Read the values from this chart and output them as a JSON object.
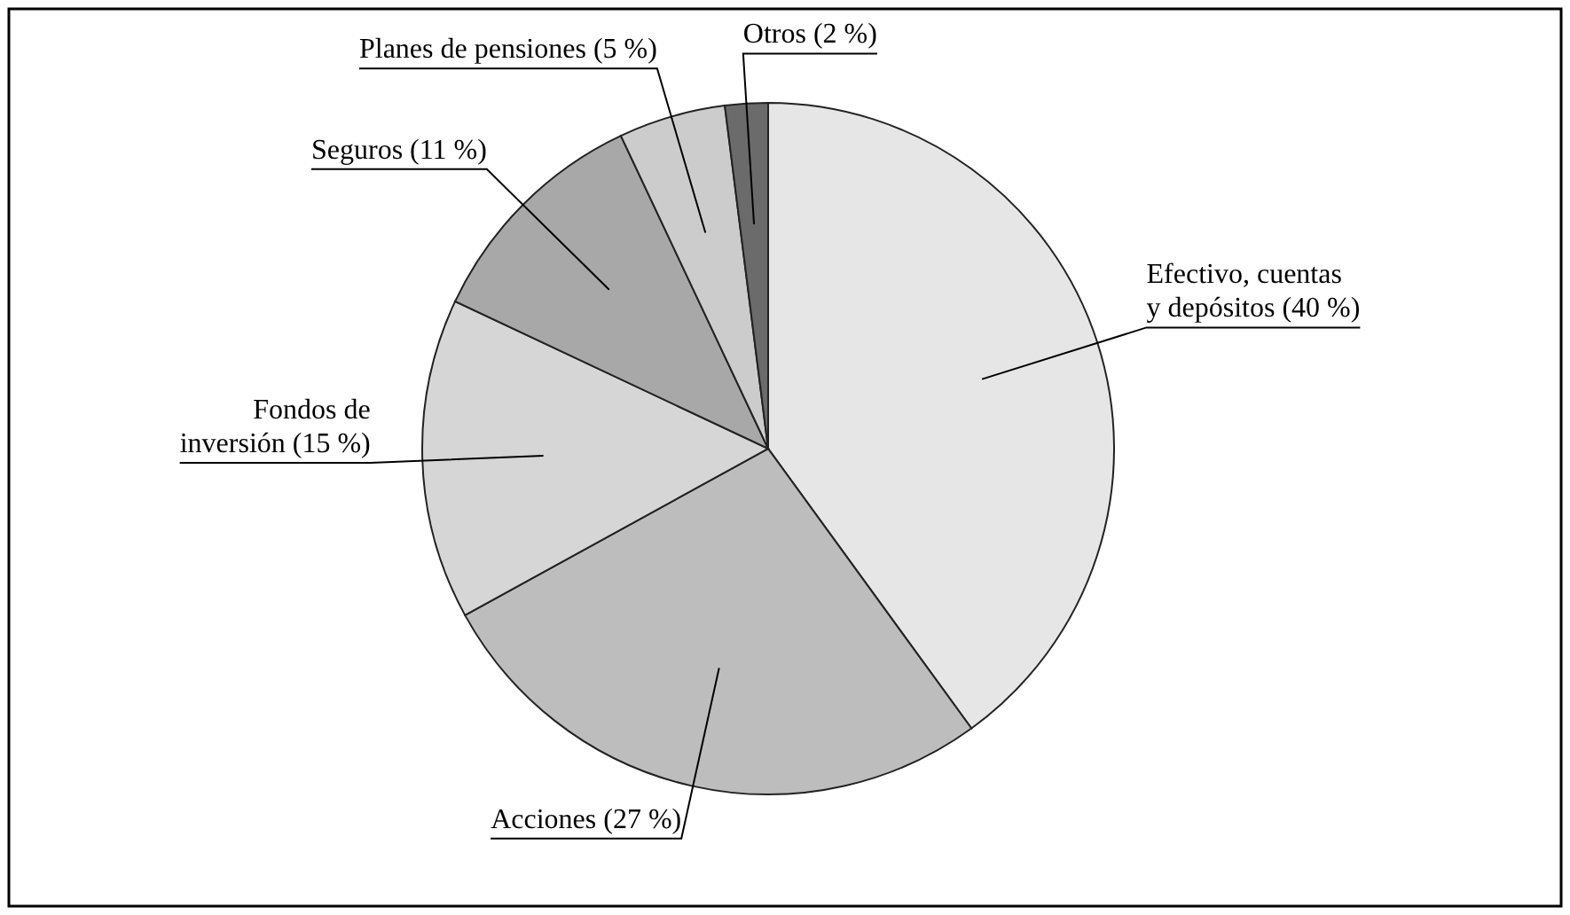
{
  "chart_data": {
    "type": "pie",
    "categories": [
      "Efectivo, cuentas\ny depósitos (40 %)",
      "Acciones (27 %)",
      "Fondos de\ninversión (15 %)",
      "Seguros (11 %)",
      "Planes de pensiones (5 %)",
      "Otros (2 %)"
    ],
    "values": [
      40,
      27,
      15,
      11,
      5,
      2
    ],
    "colors": [
      "#e6e6e6",
      "#bdbdbd",
      "#d6d6d6",
      "#a8a8a8",
      "#cccccc",
      "#6b6b6b"
    ]
  }
}
